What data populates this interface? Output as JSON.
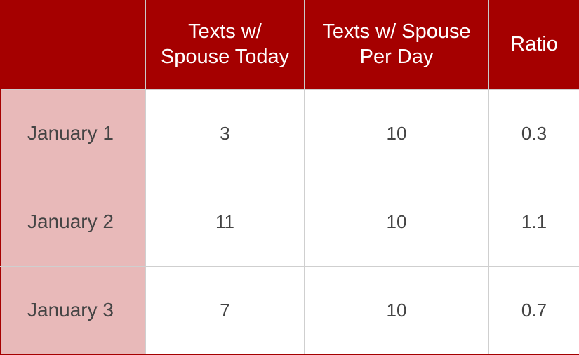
{
  "chart_data": {
    "type": "table",
    "columns": [
      "",
      "Texts w/ Spouse Today",
      "Texts w/ Spouse Per Day",
      "Ratio"
    ],
    "column_lines": [
      [],
      [
        "Texts w/",
        "Spouse Today"
      ],
      [
        "Texts w/ Spouse",
        "Per Day"
      ],
      [
        "Ratio"
      ]
    ],
    "rows": [
      [
        "January 1",
        "3",
        "10",
        "0.3"
      ],
      [
        "January 2",
        "11",
        "10",
        "1.1"
      ],
      [
        "January 3",
        "7",
        "10",
        "0.7"
      ]
    ]
  },
  "colors": {
    "header_background": "#a50000",
    "header_text": "#ffffff",
    "row_header_background": "#e8b9b9",
    "cell_background": "#ffffff",
    "cell_text": "#444444"
  }
}
